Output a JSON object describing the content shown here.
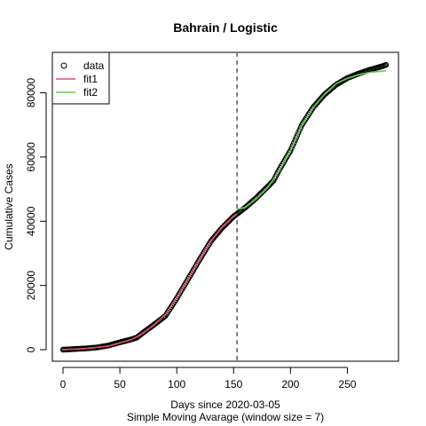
{
  "chart_data": {
    "type": "line",
    "title": "Bahrain / Logistic",
    "xlabel": "Days since 2020-03-05",
    "xlabel2": "Simple Moving Avarage (window size = 7)",
    "ylabel": "Cumulative Cases",
    "xlim": [
      0,
      284
    ],
    "ylim": [
      0,
      89000
    ],
    "xticks": [
      0,
      50,
      100,
      150,
      200,
      250
    ],
    "yticks": [
      0,
      20000,
      40000,
      60000,
      80000
    ],
    "vline_x": 153,
    "legend": {
      "position": "top-left",
      "entries": [
        "data",
        "fit1",
        "fit2"
      ]
    },
    "series": [
      {
        "name": "data",
        "style": "points",
        "color": "#000000",
        "x": [
          0,
          10,
          20,
          30,
          40,
          50,
          60,
          65,
          70,
          80,
          90,
          100,
          110,
          120,
          130,
          140,
          150,
          153,
          160,
          170,
          180,
          185,
          190,
          200,
          210,
          220,
          230,
          240,
          250,
          260,
          270,
          280,
          284
        ],
        "y": [
          0,
          200,
          400,
          700,
          1300,
          2300,
          3200,
          3800,
          5200,
          7800,
          10500,
          16000,
          22000,
          28000,
          33800,
          38000,
          41500,
          42300,
          44200,
          47300,
          50800,
          52600,
          56000,
          62000,
          70000,
          75500,
          79500,
          82500,
          84600,
          86000,
          87200,
          88200,
          88700
        ]
      },
      {
        "name": "fit1",
        "style": "line",
        "color": "#DF536B",
        "x": [
          0,
          20,
          40,
          60,
          70,
          80,
          90,
          100,
          110,
          120,
          130,
          140,
          150,
          153
        ],
        "y": [
          0,
          350,
          1100,
          3100,
          5000,
          7700,
          11000,
          16200,
          22000,
          28000,
          33800,
          38200,
          41600,
          42300
        ]
      },
      {
        "name": "fit2",
        "style": "line",
        "color": "#61D04F",
        "x": [
          153,
          160,
          170,
          180,
          190,
          200,
          210,
          220,
          230,
          240,
          250,
          260,
          270,
          280,
          284
        ],
        "y": [
          43700,
          44300,
          47000,
          50500,
          55600,
          62000,
          69800,
          75400,
          79600,
          82800,
          84500,
          85600,
          86400,
          86700,
          86900
        ]
      }
    ]
  }
}
